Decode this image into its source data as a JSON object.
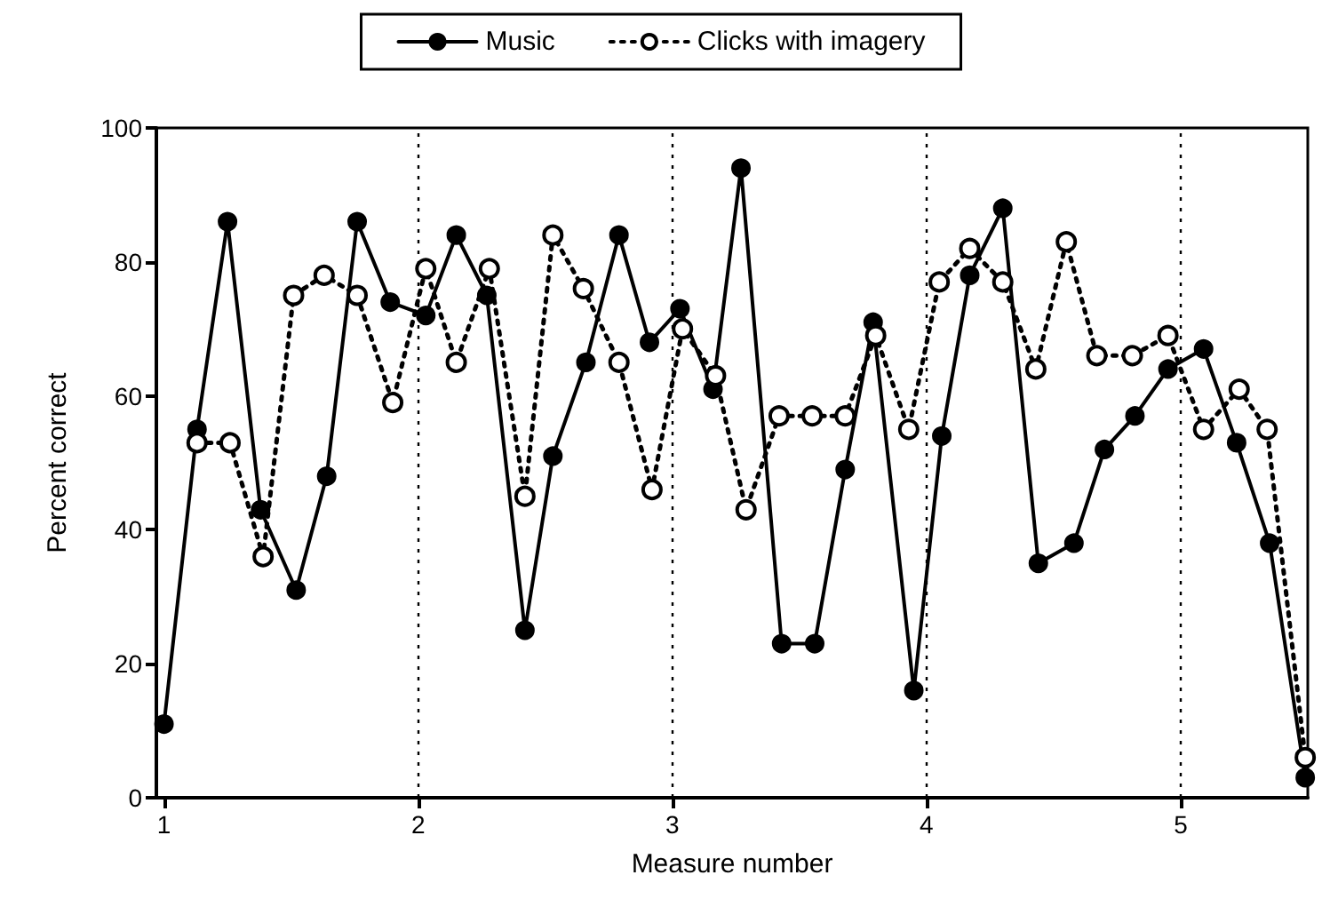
{
  "chart_data": {
    "type": "line",
    "xlabel": "Measure number",
    "ylabel": "Percent correct",
    "xlim": [
      0.97,
      5.5
    ],
    "xticks": [
      1,
      2,
      3,
      4,
      5
    ],
    "ylim": [
      0,
      100
    ],
    "yticks": [
      0,
      20,
      40,
      60,
      80,
      100
    ],
    "marker": "circle",
    "legend": "top",
    "grid": false,
    "ref_lines": [
      {
        "axis": "x",
        "value": 2,
        "line_style": "dotted",
        "color": "#000000"
      },
      {
        "axis": "x",
        "value": 3,
        "line_style": "dotted",
        "color": "#000000"
      },
      {
        "axis": "x",
        "value": 4,
        "line_style": "dotted",
        "color": "#000000"
      },
      {
        "axis": "x",
        "value": 5,
        "line_style": "dotted",
        "color": "#000000"
      }
    ],
    "series": [
      {
        "name": "Music",
        "color": "#000000",
        "line_style": "solid",
        "x": [
          1.0,
          1.13,
          1.25,
          1.38,
          1.52,
          1.64,
          1.76,
          1.89,
          2.03,
          2.15,
          2.27,
          2.42,
          2.53,
          2.66,
          2.79,
          2.91,
          3.03,
          3.16,
          3.27,
          3.43,
          3.56,
          3.68,
          3.79,
          3.95,
          4.06,
          4.17,
          4.3,
          4.44,
          4.58,
          4.7,
          4.82,
          4.95,
          5.09,
          5.22,
          5.35,
          5.49
        ],
        "values": [
          11,
          55,
          86,
          43,
          31,
          48,
          86,
          74,
          72,
          84,
          75,
          25,
          51,
          65,
          84,
          68,
          73,
          61,
          94,
          23,
          23,
          49,
          71,
          16,
          54,
          78,
          88,
          35,
          38,
          52,
          57,
          64,
          67,
          53,
          38,
          3
        ]
      },
      {
        "name": "Clicks with imagery",
        "color": "#000000",
        "line_style": "dotted",
        "x": [
          1.13,
          1.26,
          1.39,
          1.51,
          1.63,
          1.76,
          1.9,
          2.03,
          2.15,
          2.28,
          2.42,
          2.53,
          2.65,
          2.79,
          2.92,
          3.04,
          3.17,
          3.29,
          3.42,
          3.55,
          3.68,
          3.8,
          3.93,
          4.05,
          4.17,
          4.3,
          4.43,
          4.55,
          4.67,
          4.81,
          4.95,
          5.09,
          5.23,
          5.34,
          5.49
        ],
        "values": [
          53,
          53,
          36,
          75,
          78,
          75,
          59,
          79,
          65,
          79,
          45,
          84,
          76,
          65,
          46,
          70,
          63,
          43,
          57,
          57,
          57,
          69,
          55,
          77,
          82,
          77,
          64,
          83,
          66,
          66,
          69,
          55,
          61,
          55,
          6
        ]
      }
    ]
  }
}
